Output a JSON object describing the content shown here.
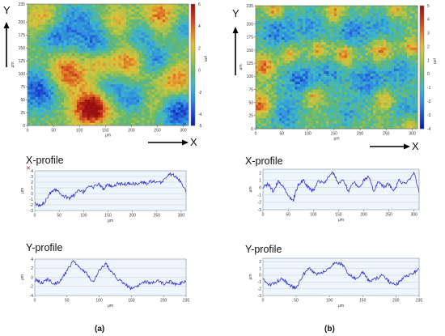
{
  "captions": [
    "(a)",
    "(b)"
  ],
  "colors": {
    "colormap": [
      "#0a1a9c",
      "#1e4fd6",
      "#2f8fe0",
      "#3fb8c8",
      "#63b76d",
      "#a8c44a",
      "#e0c23a",
      "#e07a26",
      "#c8361c",
      "#9a1010"
    ],
    "profile_line": "#1c1ccf",
    "profile_bg": "#eef5fb",
    "grid": "#b8c6d6",
    "axis_arrow": "#000000"
  },
  "chart_data": [
    {
      "type": "heatmap",
      "panel": "a",
      "x_arrow_label": "X",
      "y_arrow_label": "Y",
      "xlabel": "μm",
      "ylabel": "μm",
      "colorbar_label": "μm",
      "xlim": [
        0,
        310
      ],
      "ylim": [
        0,
        235
      ],
      "x_ticks": [
        0,
        50,
        100,
        150,
        200,
        250,
        300
      ],
      "y_ticks": [
        0,
        25,
        50,
        75,
        100,
        125,
        150,
        175,
        200,
        235
      ],
      "colorbar_range": [
        -5,
        6
      ],
      "colorbar_ticks": [
        6,
        4,
        2,
        0,
        -2,
        -4,
        -5
      ],
      "features": [
        {
          "x": 75,
          "y": 100,
          "z": 4.5,
          "r": 28
        },
        {
          "x": 130,
          "y": 35,
          "z": 4.0,
          "r": 20
        },
        {
          "x": 115,
          "y": 30,
          "z": 3.5,
          "r": 25
        },
        {
          "x": 195,
          "y": 125,
          "z": 3.5,
          "r": 22
        },
        {
          "x": 285,
          "y": 85,
          "z": 4.0,
          "r": 25
        },
        {
          "x": 175,
          "y": 195,
          "z": 3.0,
          "r": 22
        },
        {
          "x": 255,
          "y": 210,
          "z": 3.5,
          "r": 25
        },
        {
          "x": 30,
          "y": 205,
          "z": 3.0,
          "r": 22
        },
        {
          "x": 140,
          "y": 120,
          "z": 2.5,
          "r": 18
        },
        {
          "x": 240,
          "y": 40,
          "z": 2.5,
          "r": 20
        },
        {
          "x": 25,
          "y": 70,
          "z": -4.5,
          "r": 30
        },
        {
          "x": 55,
          "y": 175,
          "z": -3.5,
          "r": 25
        },
        {
          "x": 130,
          "y": 165,
          "z": -3.5,
          "r": 28
        },
        {
          "x": 215,
          "y": 175,
          "z": -3.0,
          "r": 25
        },
        {
          "x": 250,
          "y": 125,
          "z": -3.0,
          "r": 22
        },
        {
          "x": 290,
          "y": 30,
          "z": -4.5,
          "r": 30
        },
        {
          "x": 165,
          "y": 70,
          "z": -2.5,
          "r": 22
        },
        {
          "x": 210,
          "y": 50,
          "z": -3.0,
          "r": 20
        },
        {
          "x": 95,
          "y": 215,
          "z": -2.0,
          "r": 22
        },
        {
          "x": 300,
          "y": 190,
          "z": -2.5,
          "r": 20
        }
      ]
    },
    {
      "type": "heatmap",
      "panel": "b",
      "x_arrow_label": "X",
      "y_arrow_label": "Y",
      "xlabel": "μm",
      "ylabel": "μm",
      "colorbar_label": "μm",
      "xlim": [
        0,
        310
      ],
      "ylim": [
        0,
        235
      ],
      "x_ticks": [
        0,
        50,
        100,
        150,
        200,
        250,
        300
      ],
      "y_ticks": [
        0,
        25,
        50,
        75,
        100,
        125,
        150,
        175,
        200,
        235
      ],
      "colorbar_range": [
        -4,
        5
      ],
      "colorbar_ticks": [
        5,
        4,
        3,
        2,
        1,
        0,
        -1,
        -2,
        -3,
        -4
      ],
      "features": [
        {
          "x": 40,
          "y": 185,
          "z": -2.5,
          "r": 25
        },
        {
          "x": 110,
          "y": 195,
          "z": -2.0,
          "r": 25
        },
        {
          "x": 185,
          "y": 185,
          "z": -2.5,
          "r": 22
        },
        {
          "x": 245,
          "y": 200,
          "z": -2.0,
          "r": 22
        },
        {
          "x": 85,
          "y": 95,
          "z": -2.5,
          "r": 25
        },
        {
          "x": 145,
          "y": 110,
          "z": -2.0,
          "r": 22
        },
        {
          "x": 215,
          "y": 90,
          "z": -2.5,
          "r": 25
        },
        {
          "x": 280,
          "y": 110,
          "z": -2.0,
          "r": 22
        },
        {
          "x": 55,
          "y": 25,
          "z": -2.0,
          "r": 25
        },
        {
          "x": 175,
          "y": 30,
          "z": -1.5,
          "r": 22
        },
        {
          "x": 290,
          "y": 35,
          "z": -2.0,
          "r": 22
        },
        {
          "x": 15,
          "y": 120,
          "z": 3.0,
          "r": 15
        },
        {
          "x": 65,
          "y": 140,
          "z": 2.5,
          "r": 12
        },
        {
          "x": 120,
          "y": 150,
          "z": 2.5,
          "r": 14
        },
        {
          "x": 170,
          "y": 140,
          "z": 3.0,
          "r": 14
        },
        {
          "x": 240,
          "y": 150,
          "z": 3.0,
          "r": 14
        },
        {
          "x": 300,
          "y": 155,
          "z": 2.5,
          "r": 12
        },
        {
          "x": 10,
          "y": 45,
          "z": 3.5,
          "r": 15
        },
        {
          "x": 110,
          "y": 60,
          "z": 2.5,
          "r": 12
        },
        {
          "x": 245,
          "y": 55,
          "z": 2.5,
          "r": 14
        },
        {
          "x": 35,
          "y": 225,
          "z": 3.0,
          "r": 12
        },
        {
          "x": 150,
          "y": 220,
          "z": 2.5,
          "r": 14
        },
        {
          "x": 265,
          "y": 225,
          "z": 2.5,
          "r": 12
        },
        {
          "x": 295,
          "y": 10,
          "z": 2.5,
          "r": 12
        }
      ]
    },
    {
      "type": "line",
      "panel": "a",
      "title": "X-profile",
      "xlabel": "μm",
      "ylabel": "μm",
      "xlim": [
        0,
        310
      ],
      "ylim": [
        -3.0,
        4.0
      ],
      "x_ticks": [
        0,
        50,
        100,
        150,
        200,
        250,
        300
      ],
      "y_ticks": [
        4.0,
        3.0,
        2.0,
        1.0,
        0.0,
        -1.0,
        -2.0,
        -3.0
      ],
      "grid": true,
      "series": [
        {
          "x": [
            0,
            10,
            20,
            30,
            40,
            50,
            60,
            70,
            80,
            90,
            100,
            110,
            120,
            130,
            140,
            150,
            160,
            170,
            180,
            190,
            200,
            210,
            220,
            230,
            240,
            250,
            260,
            270,
            280,
            290,
            300,
            310
          ],
          "values": [
            -1.8,
            -2.2,
            -1.5,
            0.0,
            0.8,
            0.3,
            -0.5,
            -0.8,
            -0.3,
            0.5,
            0.2,
            1.5,
            1.0,
            1.8,
            0.8,
            1.5,
            1.0,
            1.8,
            1.6,
            1.7,
            1.8,
            1.6,
            2.0,
            1.7,
            2.2,
            1.8,
            2.0,
            3.0,
            3.5,
            2.8,
            2.0,
            0.5
          ]
        }
      ]
    },
    {
      "type": "line",
      "panel": "a",
      "title": "Y-profile",
      "xlabel": "μm",
      "ylabel": "μm",
      "xlim": [
        0,
        235
      ],
      "ylim": [
        -4.0,
        4.0
      ],
      "x_ticks": [
        0,
        50,
        100,
        150,
        200,
        235
      ],
      "y_ticks": [
        4,
        2,
        0,
        -2,
        -4
      ],
      "grid": true,
      "series": [
        {
          "x": [
            0,
            10,
            20,
            30,
            40,
            50,
            60,
            70,
            80,
            90,
            100,
            110,
            120,
            130,
            140,
            150,
            160,
            170,
            180,
            190,
            200,
            210,
            220,
            235
          ],
          "values": [
            -0.5,
            -1.2,
            -0.5,
            -1.5,
            -0.8,
            1.5,
            3.5,
            2.0,
            1.0,
            -1.0,
            1.5,
            3.0,
            1.0,
            -0.5,
            -1.5,
            -2.5,
            -2.0,
            -1.0,
            -1.2,
            -0.8,
            -1.5,
            -1.0,
            -1.5,
            -1.0
          ]
        }
      ]
    },
    {
      "type": "line",
      "panel": "b",
      "title": "X-profile",
      "xlabel": "μm",
      "ylabel": "μm",
      "xlim": [
        0,
        310
      ],
      "ylim": [
        -3.0,
        2.5
      ],
      "x_ticks": [
        0,
        50,
        100,
        150,
        200,
        250,
        300
      ],
      "y_ticks": [
        2.0,
        1.0,
        0.0,
        -1.0,
        -2.0,
        -3.0
      ],
      "grid": true,
      "series": [
        {
          "x": [
            0,
            10,
            20,
            30,
            40,
            50,
            60,
            70,
            80,
            90,
            100,
            110,
            120,
            130,
            140,
            150,
            160,
            170,
            180,
            190,
            200,
            210,
            220,
            230,
            240,
            250,
            260,
            270,
            280,
            290,
            300,
            310
          ],
          "values": [
            0.0,
            0.5,
            -0.5,
            0.8,
            0.2,
            -1.0,
            -1.8,
            0.5,
            1.0,
            0.0,
            -0.5,
            1.0,
            0.5,
            1.5,
            2.0,
            0.5,
            1.0,
            -0.5,
            0.8,
            0.0,
            1.0,
            1.5,
            -0.5,
            1.0,
            0.0,
            0.5,
            -0.5,
            1.0,
            0.5,
            1.0,
            2.2,
            -0.8
          ]
        }
      ]
    },
    {
      "type": "line",
      "panel": "b",
      "title": "Y-profile",
      "xlabel": "μm",
      "ylabel": "μm",
      "xlim": [
        0,
        235
      ],
      "ylim": [
        -3.0,
        2.5
      ],
      "x_ticks": [
        0,
        50,
        100,
        150,
        200,
        235
      ],
      "y_ticks": [
        2.0,
        1.0,
        0.0,
        -1.0,
        -2.0,
        -3.0
      ],
      "grid": true,
      "series": [
        {
          "x": [
            0,
            10,
            20,
            30,
            40,
            50,
            60,
            70,
            80,
            90,
            100,
            110,
            120,
            130,
            140,
            150,
            160,
            170,
            180,
            190,
            200,
            210,
            220,
            230,
            235
          ],
          "values": [
            -0.5,
            -1.5,
            -1.0,
            -0.5,
            -1.5,
            -2.0,
            0.0,
            1.0,
            0.0,
            0.5,
            1.0,
            2.0,
            1.5,
            0.0,
            -0.5,
            0.5,
            -1.0,
            -0.5,
            0.0,
            -1.0,
            -1.5,
            -0.5,
            0.0,
            0.5,
            1.2
          ]
        }
      ]
    }
  ]
}
